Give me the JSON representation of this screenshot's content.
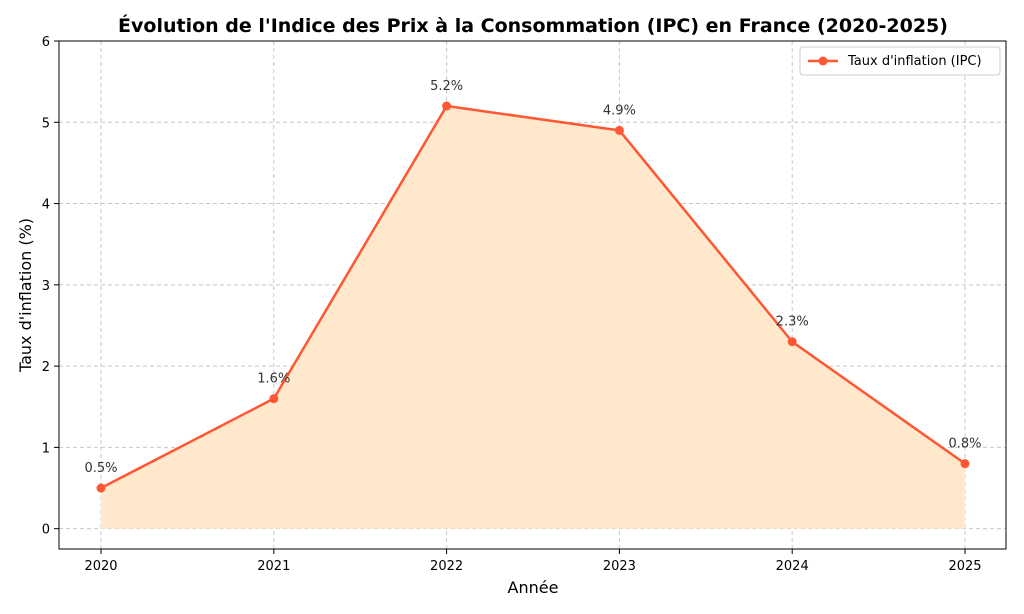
{
  "chart_data": {
    "type": "line",
    "title": "Évolution de l'Indice des Prix à la Consommation (IPC) en France (2020-2025)",
    "xlabel": "Année",
    "ylabel": "Taux d'inflation (%)",
    "categories": [
      "2020",
      "2021",
      "2022",
      "2023",
      "2024",
      "2025"
    ],
    "series": [
      {
        "name": "Taux d'inflation (IPC)",
        "values": [
          0.5,
          1.6,
          5.2,
          4.9,
          2.3,
          0.8
        ],
        "labels": [
          "0.5%",
          "1.6%",
          "5.2%",
          "4.9%",
          "2.3%",
          "0.8%"
        ]
      }
    ],
    "yticks": [
      "0",
      "1",
      "2",
      "3",
      "4",
      "5",
      "6"
    ],
    "ylim": [
      -0.25,
      6
    ],
    "grid": true,
    "legend_position": "top-right",
    "colors": {
      "line": "#ff5733",
      "fill": "#ffe8cc"
    }
  }
}
